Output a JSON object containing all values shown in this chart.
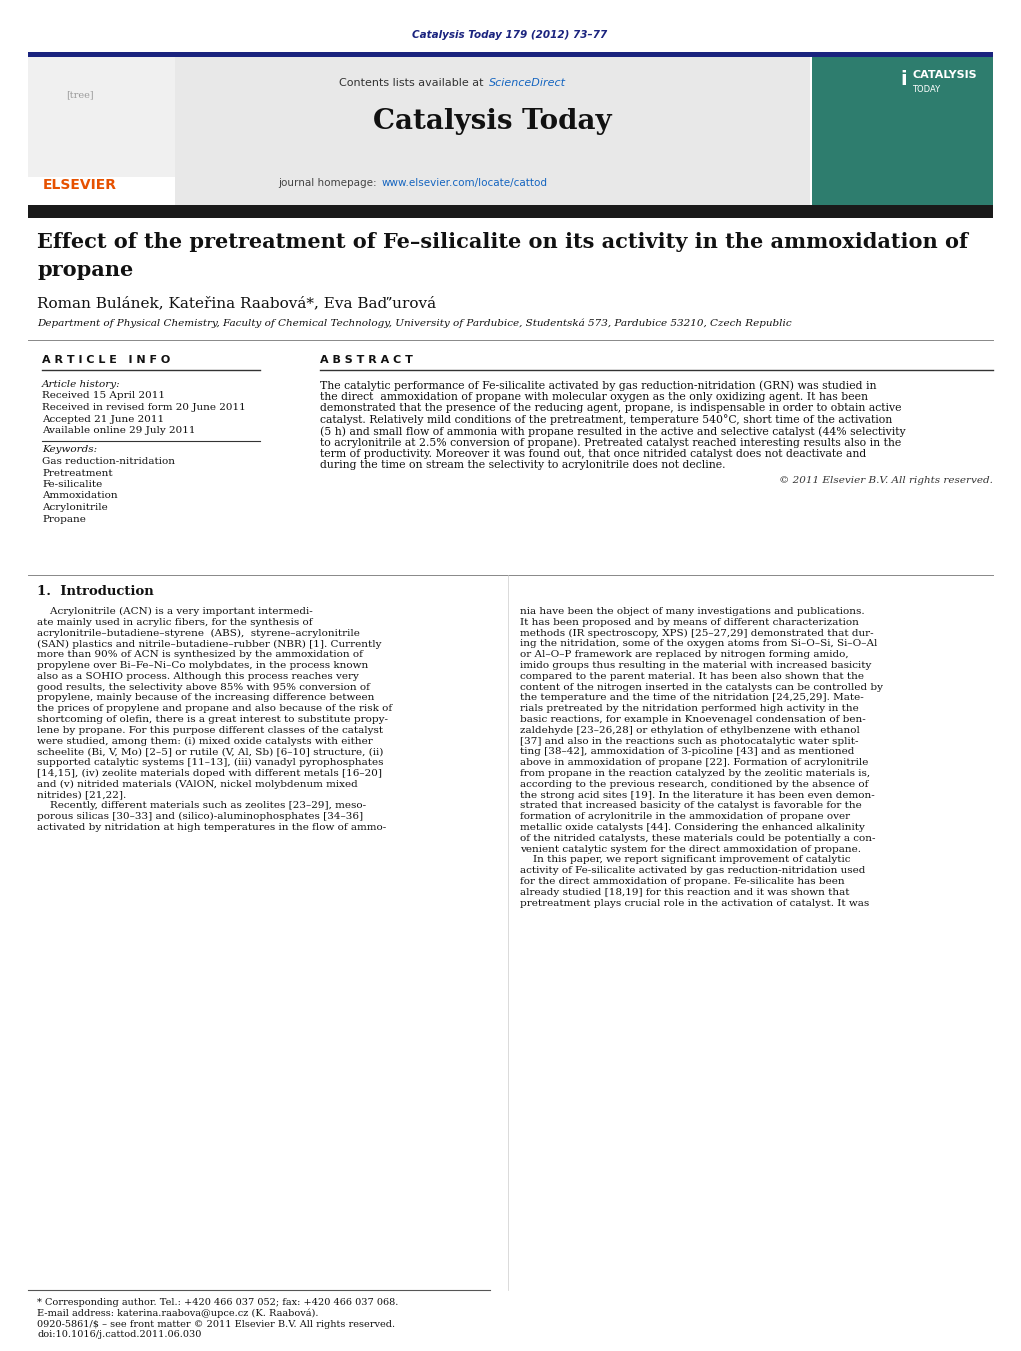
{
  "page_width": 10.21,
  "page_height": 13.51,
  "background_color": "#ffffff",
  "header_citation": "Catalysis Today 179 (2012) 73–77",
  "header_citation_color": "#1a237e",
  "journal_banner_bg": "#e8e8e8",
  "journal_name": "Catalysis Today",
  "contents_text": "Contents lists available at ",
  "sciencedirect_text": "ScienceDirect",
  "sciencedirect_color": "#1565c0",
  "journal_homepage_text": "journal homepage: ",
  "journal_url": "www.elsevier.com/locate/cattod",
  "journal_url_color": "#1565c0",
  "elsevier_color": "#e65100",
  "dark_bar_color": "#1a237e",
  "article_title_line1": "Effect of the pretreatment of Fe–silicalite on its activity in the ammoxidation of",
  "article_title_line2": "propane",
  "authors": "Roman Bulánek, Kateřina Raabová*, Eva Baďʼurová",
  "affiliation": "Department of Physical Chemistry, Faculty of Chemical Technology, University of Pardubice, Studentská 573, Pardubice 53210, Czech Republic",
  "article_info_label": "A R T I C L E   I N F O",
  "abstract_label": "A B S T R A C T",
  "article_history_label": "Article history:",
  "received": "Received 15 April 2011",
  "received_revised": "Received in revised form 20 June 2011",
  "accepted": "Accepted 21 June 2011",
  "available": "Available online 29 July 2011",
  "keywords_label": "Keywords:",
  "keywords": [
    "Gas reduction-nitridation",
    "Pretreatment",
    "Fe-silicalite",
    "Ammoxidation",
    "Acrylonitrile",
    "Propane"
  ],
  "abstract_text": "The catalytic performance of Fe-silicalite activated by gas reduction-nitridation (GRN) was studied in\nthe direct  ammoxidation of propane with molecular oxygen as the only oxidizing agent. It has been\ndemonstrated that the presence of the reducing agent, propane, is indispensable in order to obtain active\ncatalyst. Relatively mild conditions of the pretreatment, temperature 540°C, short time of the activation\n(5 h) and small flow of ammonia with propane resulted in the active and selective catalyst (44% selectivity\nto acrylonitrile at 2.5% conversion of propane). Pretreated catalyst reached interesting results also in the\nterm of productivity. Moreover it was found out, that once nitrided catalyst does not deactivate and\nduring the time on stream the selectivity to acrylonitrile does not decline.",
  "copyright": "© 2011 Elsevier B.V. All rights reserved.",
  "intro_heading": "1.  Introduction",
  "intro_col1_lines": [
    "    Acrylonitrile (ACN) is a very important intermedi-",
    "ate mainly used in acrylic fibers, for the synthesis of",
    "acrylonitrile–butadiene–styrene  (ABS),  styrene–acrylonitrile",
    "(SAN) plastics and nitrile–butadiene–rubber (NBR) [1]. Currently",
    "more than 90% of ACN is synthesized by the ammoxidation of",
    "propylene over Bi–Fe–Ni–Co molybdates, in the process known",
    "also as a SOHIO process. Although this process reaches very",
    "good results, the selectivity above 85% with 95% conversion of",
    "propylene, mainly because of the increasing difference between",
    "the prices of propylene and propane and also because of the risk of",
    "shortcoming of olefin, there is a great interest to substitute propy-",
    "lene by propane. For this purpose different classes of the catalyst",
    "were studied, among them: (i) mixed oxide catalysts with either",
    "scheelite (Bi, V, Mo) [2–5] or rutile (V, Al, Sb) [6–10] structure, (ii)",
    "supported catalytic systems [11–13], (iii) vanadyl pyrophosphates",
    "[14,15], (iv) zeolite materials doped with different metals [16–20]",
    "and (v) nitrided materials (VAlON, nickel molybdenum mixed",
    "nitrides) [21,22].",
    "    Recently, different materials such as zeolites [23–29], meso-",
    "porous silicas [30–33] and (silico)-aluminophosphates [34–36]",
    "activated by nitridation at high temperatures in the flow of ammo-"
  ],
  "intro_col2_lines": [
    "nia have been the object of many investigations and publications.",
    "It has been proposed and by means of different characterization",
    "methods (IR spectroscopy, XPS) [25–27,29] demonstrated that dur-",
    "ing the nitridation, some of the oxygen atoms from Si–O–Si, Si–O–Al",
    "or Al–O–P framework are replaced by nitrogen forming amido,",
    "imido groups thus resulting in the material with increased basicity",
    "compared to the parent material. It has been also shown that the",
    "content of the nitrogen inserted in the catalysts can be controlled by",
    "the temperature and the time of the nitridation [24,25,29]. Mate-",
    "rials pretreated by the nitridation performed high activity in the",
    "basic reactions, for example in Knoevenagel condensation of ben-",
    "zaldehyde [23–26,28] or ethylation of ethylbenzene with ethanol",
    "[37] and also in the reactions such as photocatalytic water split-",
    "ting [38–42], ammoxidation of 3-picoline [43] and as mentioned",
    "above in ammoxidation of propane [22]. Formation of acrylonitrile",
    "from propane in the reaction catalyzed by the zeolitic materials is,",
    "according to the previous research, conditioned by the absence of",
    "the strong acid sites [19]. In the literature it has been even demon-",
    "strated that increased basicity of the catalyst is favorable for the",
    "formation of acrylonitrile in the ammoxidation of propane over",
    "metallic oxide catalysts [44]. Considering the enhanced alkalinity",
    "of the nitrided catalysts, these materials could be potentially a con-",
    "venient catalytic system for the direct ammoxidation of propane.",
    "    In this paper, we report significant improvement of catalytic",
    "activity of Fe-silicalite activated by gas reduction-nitridation used",
    "for the direct ammoxidation of propane. Fe-silicalite has been",
    "already studied [18,19] for this reaction and it was shown that",
    "pretreatment plays crucial role in the activation of catalyst. It was"
  ],
  "footnote_star": "* Corresponding author. Tel.: +420 466 037 052; fax: +420 466 037 068.",
  "footnote_email": "E-mail address: katerina.raabova@upce.cz (K. Raabová).",
  "footnote_issn": "0920-5861/$ – see front matter © 2011 Elsevier B.V. All rights reserved.",
  "footnote_doi": "doi:10.1016/j.cattod.2011.06.030"
}
